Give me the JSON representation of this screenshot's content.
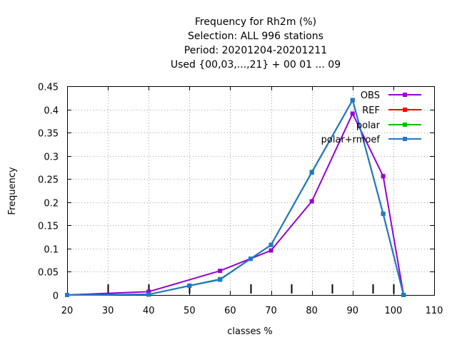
{
  "chart_data": {
    "type": "line",
    "title_lines": [
      "Frequency  for Rh2m (%)",
      "Selection: ALL    996 stations",
      "Period: 20201204-20201211",
      "Used {00,03,...,21} + 00 01 ... 09"
    ],
    "xlabel": "classes %",
    "ylabel": "Frequency",
    "xlim": [
      20,
      110
    ],
    "ylim": [
      0,
      0.45
    ],
    "xticks": [
      20,
      30,
      40,
      50,
      60,
      70,
      80,
      90,
      100,
      110
    ],
    "yticks": [
      "0",
      "0.05",
      "0.1",
      "0.15",
      "0.2",
      "0.25",
      "0.3",
      "0.35",
      "0.4",
      "0.45"
    ],
    "class_marks": [
      30,
      40,
      50,
      65,
      75,
      85,
      95,
      100
    ],
    "grid": true,
    "legend_position": "top-right",
    "series": [
      {
        "name": "REF",
        "color": "#ff0000",
        "x": [
          20,
          40,
          50,
          57.5,
          65,
          70,
          80,
          90,
          97.5,
          102.5
        ],
        "y": [
          0,
          0.001,
          0.02,
          0.034,
          0.078,
          0.108,
          0.265,
          0.42,
          0.175,
          0
        ]
      },
      {
        "name": "polar",
        "color": "#00c000",
        "x": [
          20,
          40,
          50,
          57.5,
          65,
          70,
          80,
          90,
          97.5,
          102.5
        ],
        "y": [
          0,
          0.001,
          0.02,
          0.034,
          0.078,
          0.108,
          0.265,
          0.42,
          0.175,
          0
        ]
      },
      {
        "name": "OBS",
        "color": "#9400d3",
        "x": [
          20,
          40,
          57.5,
          70,
          80,
          90,
          97.5,
          102.5
        ],
        "y": [
          0,
          0.007,
          0.052,
          0.096,
          0.202,
          0.391,
          0.256,
          0
        ]
      },
      {
        "name": "polar+rmoef",
        "color": "#1e78d2",
        "x": [
          20,
          40,
          50,
          57.5,
          65,
          70,
          80,
          90,
          97.5,
          102.5
        ],
        "y": [
          0,
          0.001,
          0.02,
          0.033,
          0.078,
          0.108,
          0.264,
          0.42,
          0.175,
          0
        ]
      }
    ],
    "legend_order": [
      "OBS",
      "REF",
      "polar",
      "polar+rmoef"
    ]
  }
}
